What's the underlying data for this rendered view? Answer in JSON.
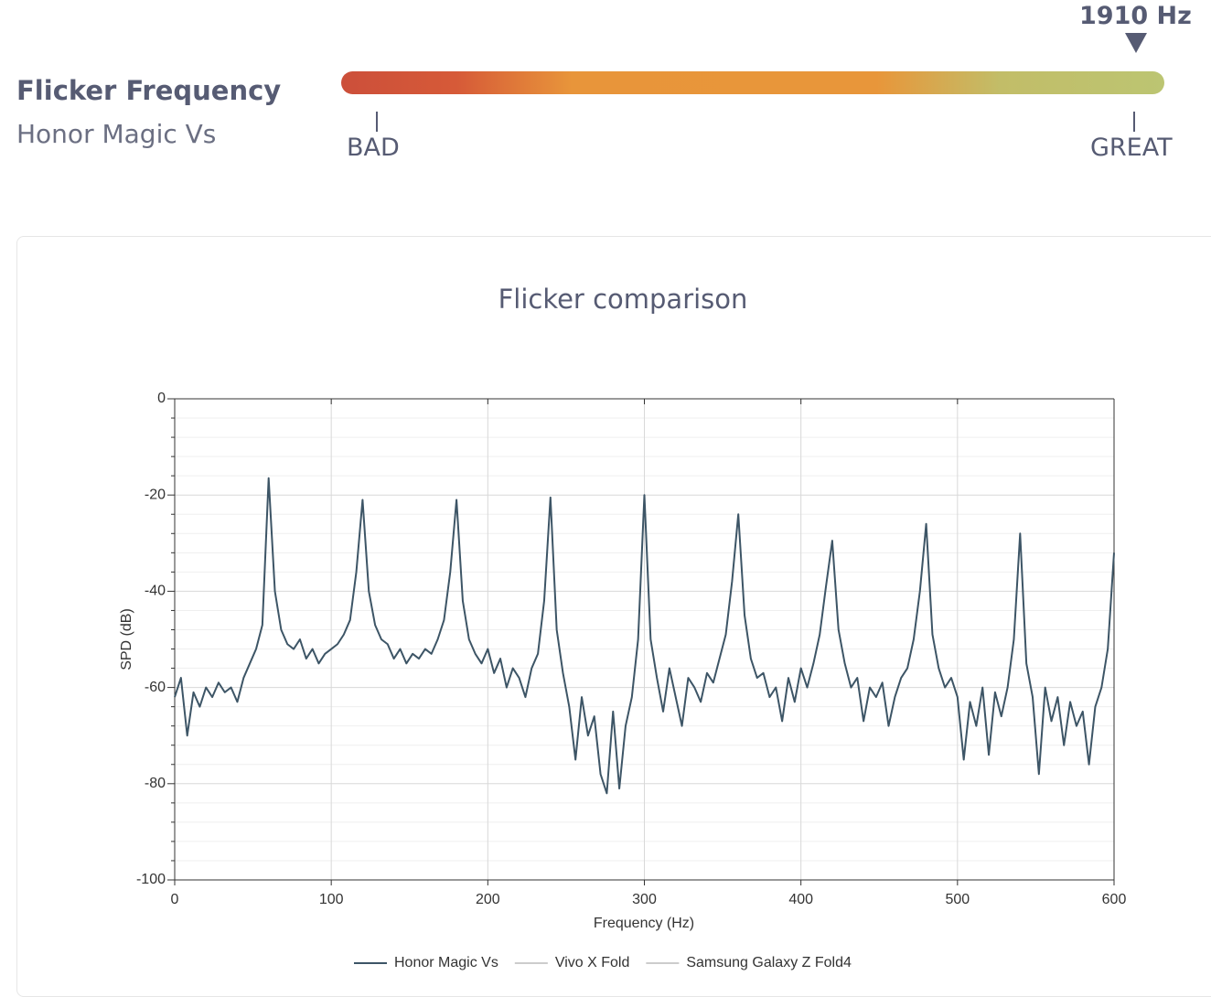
{
  "header": {
    "title": "Flicker Frequency",
    "subtitle": "Honor Magic Vs",
    "marker": "1910 Hz",
    "low_label": "BAD",
    "high_label": "GREAT"
  },
  "chart_data": {
    "type": "line",
    "title": "Flicker comparison",
    "xlabel": "Frequency (Hz)",
    "ylabel": "SPD (dB)",
    "xlim": [
      0,
      600
    ],
    "xticks": [
      0,
      100,
      200,
      300,
      400,
      500,
      600
    ],
    "ylim": [
      -100,
      0
    ],
    "yticks": [
      0,
      -20,
      -40,
      -60,
      -80,
      -100
    ],
    "yminorticks": [
      -4,
      -8,
      -12,
      -16,
      -24,
      -28,
      -32,
      -36,
      -44,
      -48,
      -52,
      -56,
      -64,
      -68,
      -72,
      -76,
      -84,
      -88,
      -92,
      -96
    ],
    "grid": true,
    "x": [
      0,
      4,
      8,
      12,
      16,
      20,
      24,
      28,
      32,
      36,
      40,
      44,
      48,
      52,
      56,
      60,
      64,
      68,
      72,
      76,
      80,
      84,
      88,
      92,
      96,
      100,
      104,
      108,
      112,
      116,
      120,
      124,
      128,
      132,
      136,
      140,
      144,
      148,
      152,
      156,
      160,
      164,
      168,
      172,
      176,
      180,
      184,
      188,
      192,
      196,
      200,
      204,
      208,
      212,
      216,
      220,
      224,
      228,
      232,
      236,
      240,
      244,
      248,
      252,
      256,
      260,
      264,
      268,
      272,
      276,
      280,
      284,
      288,
      292,
      296,
      300,
      304,
      308,
      312,
      316,
      320,
      324,
      328,
      332,
      336,
      340,
      344,
      348,
      352,
      356,
      360,
      364,
      368,
      372,
      376,
      380,
      384,
      388,
      392,
      396,
      400,
      404,
      408,
      412,
      416,
      420,
      424,
      428,
      432,
      436,
      440,
      444,
      448,
      452,
      456,
      460,
      464,
      468,
      472,
      476,
      480,
      484,
      488,
      492,
      496,
      500,
      504,
      508,
      512,
      516,
      520,
      524,
      528,
      532,
      536,
      540,
      544,
      548,
      552,
      556,
      560,
      564,
      568,
      572,
      576,
      580,
      584,
      588,
      592,
      596,
      600
    ],
    "series": [
      {
        "name": "Honor Magic Vs",
        "color": "#3d5566",
        "values": [
          -62,
          -58,
          -70,
          -61,
          -64,
          -60,
          -62,
          -59,
          -61,
          -60,
          -63,
          -58,
          -55,
          -52,
          -47,
          -16.5,
          -40,
          -48,
          -51,
          -52,
          -50,
          -54,
          -52,
          -55,
          -53,
          -52,
          -51,
          -49,
          -46,
          -36,
          -21,
          -40,
          -47,
          -50,
          -51,
          -54,
          -52,
          -55,
          -53,
          -54,
          -52,
          -53,
          -50,
          -46,
          -36,
          -21,
          -42,
          -50,
          -53,
          -55,
          -52,
          -57,
          -54,
          -60,
          -56,
          -58,
          -62,
          -56,
          -53,
          -42,
          -20.5,
          -48,
          -57,
          -64,
          -75,
          -62,
          -70,
          -66,
          -78,
          -82,
          -65,
          -81,
          -68,
          -62,
          -50,
          -20,
          -50,
          -58,
          -65,
          -56,
          -62,
          -68,
          -58,
          -60,
          -63,
          -57,
          -59,
          -54,
          -49,
          -38,
          -24,
          -45,
          -54,
          -58,
          -57,
          -62,
          -60,
          -67,
          -58,
          -63,
          -56,
          -60,
          -55,
          -49,
          -39,
          -29.5,
          -48,
          -55,
          -60,
          -58,
          -67,
          -60,
          -62,
          -59,
          -68,
          -62,
          -58,
          -56,
          -50,
          -40,
          -26,
          -49,
          -56,
          -60,
          -58,
          -62,
          -75,
          -63,
          -68,
          -60,
          -74,
          -61,
          -66,
          -60,
          -50,
          -28,
          -55,
          -62,
          -78,
          -60,
          -67,
          -62,
          -72,
          -63,
          -68,
          -65,
          -76,
          -64,
          -60,
          -52,
          -32
        ]
      },
      {
        "name": "Vivo X Fold",
        "color": "#cccccc",
        "hidden": true
      },
      {
        "name": "Samsung Galaxy Z Fold4",
        "color": "#cccccc",
        "hidden": true
      }
    ]
  }
}
